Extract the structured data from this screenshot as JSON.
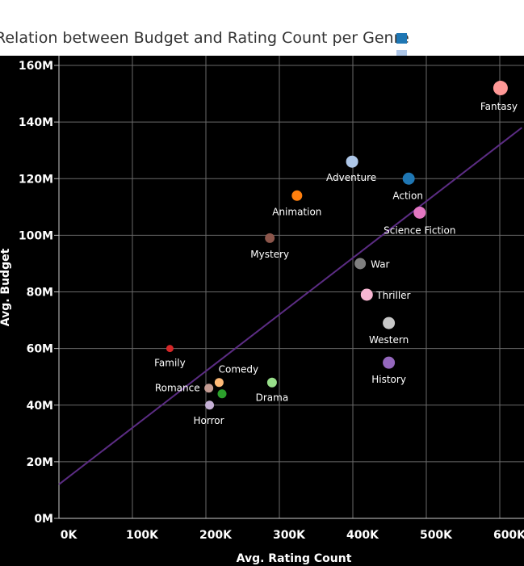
{
  "chart_data": {
    "type": "scatter",
    "title": "Relation between Budget and Rating Count per Genre",
    "xlabel": "Avg. Rating Count",
    "ylabel": "Avg. Budget",
    "xlim": [
      0,
      630000
    ],
    "ylim": [
      0,
      162000000
    ],
    "x_ticks": [
      0,
      100000,
      200000,
      300000,
      400000,
      500000,
      600000
    ],
    "x_tick_labels": [
      "0K",
      "100K",
      "200K",
      "300K",
      "400K",
      "500K",
      "600K"
    ],
    "y_ticks": [
      0,
      20000000,
      40000000,
      60000000,
      80000000,
      100000000,
      120000000,
      140000000,
      160000000
    ],
    "y_tick_labels": [
      "0M",
      "20M",
      "40M",
      "60M",
      "80M",
      "100M",
      "120M",
      "140M",
      "160M"
    ],
    "grid": true,
    "background": "#000000",
    "points": [
      {
        "label": "Fantasy",
        "x": 601000,
        "y": 152000000,
        "color": "#ff9896",
        "size": 9
      },
      {
        "label": "Adventure",
        "x": 399000,
        "y": 126000000,
        "color": "#aec7e8",
        "size": 7.5
      },
      {
        "label": "Action",
        "x": 476000,
        "y": 120000000,
        "color": "#1f77b4",
        "size": 7.5
      },
      {
        "label": "Animation",
        "x": 324000,
        "y": 114000000,
        "color": "#ff7f0e",
        "size": 6.5
      },
      {
        "label": "Science Fiction",
        "x": 491000,
        "y": 108000000,
        "color": "#e377c2",
        "size": 7.5
      },
      {
        "label": "Mystery",
        "x": 287000,
        "y": 99000000,
        "color": "#8c564b",
        "size": 6
      },
      {
        "label": "War",
        "x": 410000,
        "y": 90000000,
        "color": "#7f7f7f",
        "size": 7
      },
      {
        "label": "Thriller",
        "x": 419000,
        "y": 79000000,
        "color": "#f7b6d2",
        "size": 7.5
      },
      {
        "label": "Western",
        "x": 449000,
        "y": 69000000,
        "color": "#c7c7c7",
        "size": 7.5
      },
      {
        "label": "History",
        "x": 449000,
        "y": 55000000,
        "color": "#9467bd",
        "size": 7.5
      },
      {
        "label": "Family",
        "x": 151000,
        "y": 60000000,
        "color": "#d62728",
        "size": 4.5
      },
      {
        "label": "Comedy",
        "x": 218000,
        "y": 48000000,
        "color": "#ffbb78",
        "size": 5.5
      },
      {
        "label": "Drama",
        "x": 290000,
        "y": 48000000,
        "color": "#98df8a",
        "size": 6
      },
      {
        "label": "",
        "x": 222000,
        "y": 44000000,
        "color": "#2ca02c",
        "size": 5.5
      },
      {
        "label": "Romance",
        "x": 204000,
        "y": 46000000,
        "color": "#c49c94",
        "size": 5.5
      },
      {
        "label": "Horror",
        "x": 205000,
        "y": 40000000,
        "color": "#c5b0d5",
        "size": 5.5
      }
    ],
    "trend_line": {
      "color": "#5b2c83",
      "x0": 0,
      "y0": 12000000,
      "x1": 630000,
      "y1": 138000000
    },
    "legend": {
      "placement": "top-right",
      "colors": [
        "#1f77b4",
        "#aec7e8"
      ]
    }
  }
}
